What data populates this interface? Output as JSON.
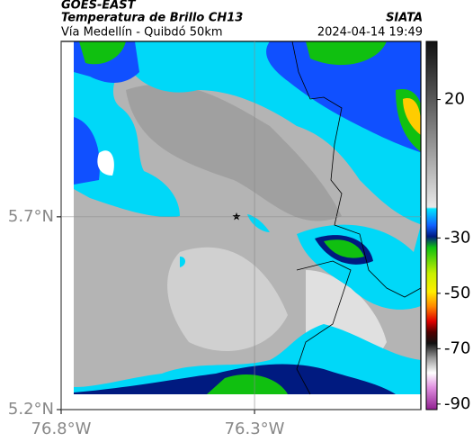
{
  "chart_data": {
    "type": "map",
    "source": "GOES-EAST",
    "title": "Temperatura de Brillo CH13",
    "brand": "SIATA",
    "subtitle": "Vía Medellín - Quibdó 50km",
    "timestamp": "2024-04-14 19:49",
    "xlim": [
      -76.8,
      -75.87
    ],
    "ylim": [
      5.2,
      6.155
    ],
    "xticks": [
      {
        "value": -76.8,
        "label": "76.8°W"
      },
      {
        "value": -76.3,
        "label": "76.3°W"
      }
    ],
    "yticks": [
      {
        "value": 5.2,
        "label": "5.2°N"
      },
      {
        "value": 5.7,
        "label": "5.7°N"
      }
    ],
    "grid": true,
    "clim": [
      41,
      -92
    ],
    "cticks": [
      20,
      -30,
      -50,
      -70,
      -90
    ]
  }
}
